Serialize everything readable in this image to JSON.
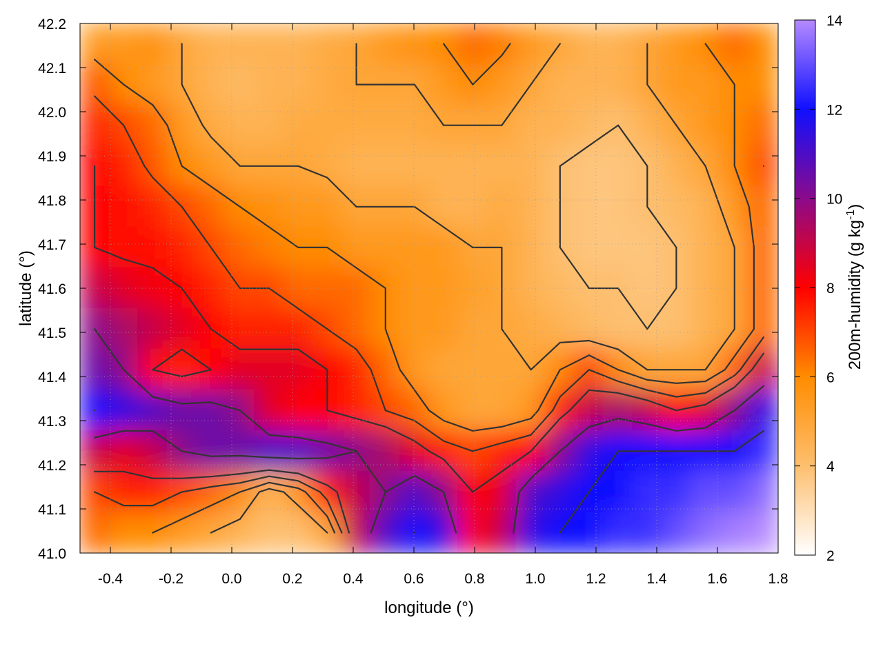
{
  "chart_data": {
    "type": "heatmap",
    "title": "",
    "xlabel": "longitude (°)",
    "ylabel": "latitude (°)",
    "colorbar_label_main": "200m-humidity (g kg",
    "colorbar_label_sup": "-1",
    "colorbar_label_end": ")",
    "xlim": [
      -0.5,
      1.8
    ],
    "ylim": [
      41.0,
      42.2
    ],
    "clim": [
      2,
      14
    ],
    "xticks": [
      -0.4,
      -0.2,
      0.0,
      0.2,
      0.4,
      0.6,
      0.8,
      1.0,
      1.2,
      1.4,
      1.6,
      1.8
    ],
    "xtick_labels": [
      "-0.4",
      "-0.2",
      "0.0",
      "0.2",
      "0.4",
      "0.6",
      "0.8",
      "1.0",
      "1.2",
      "1.4",
      "1.6",
      "1.8"
    ],
    "yticks": [
      41.0,
      41.1,
      41.2,
      41.3,
      41.4,
      41.5,
      41.6,
      41.7,
      41.8,
      41.9,
      42.0,
      42.1,
      42.2
    ],
    "ytick_labels": [
      "41.0",
      "41.1",
      "41.2",
      "41.3",
      "41.4",
      "41.5",
      "41.6",
      "41.7",
      "41.8",
      "41.9",
      "42.0",
      "42.1",
      "42.2"
    ],
    "cticks": [
      2,
      4,
      6,
      8,
      10,
      12,
      14
    ],
    "ctick_labels": [
      "2",
      "4",
      "6",
      "8",
      "10",
      "12",
      "14"
    ],
    "colormap": [
      {
        "value": 2,
        "color": "#ffffff"
      },
      {
        "value": 4,
        "color": "#fdbf6f"
      },
      {
        "value": 6,
        "color": "#ff8c00"
      },
      {
        "value": 8,
        "color": "#ff0000"
      },
      {
        "value": 10,
        "color": "#8b0a8b"
      },
      {
        "value": 12,
        "color": "#1010ff"
      },
      {
        "value": 14,
        "color": "#b58aff"
      }
    ],
    "grid": true,
    "contour_color": "#333333",
    "field_columns": 24,
    "field_rows": 13,
    "field": [
      [
        5.5,
        5.5,
        5.8,
        5.0,
        4.5,
        4.5,
        4.5,
        4.5,
        4.8,
        5.0,
        5.5,
        5.8,
        6.0,
        6.5,
        6.2,
        5.5,
        5.0,
        4.5,
        4.5,
        5.0,
        5.5,
        6.0,
        6.5,
        6.0
      ],
      [
        6.8,
        6.0,
        5.5,
        5.0,
        4.5,
        4.2,
        4.5,
        4.5,
        4.8,
        5.0,
        5.0,
        5.0,
        5.5,
        6.0,
        5.5,
        5.0,
        4.5,
        4.5,
        4.5,
        5.0,
        5.5,
        5.5,
        6.0,
        6.0
      ],
      [
        7.5,
        7.0,
        6.5,
        5.5,
        4.8,
        4.5,
        4.5,
        4.8,
        4.8,
        4.8,
        4.8,
        4.8,
        5.0,
        5.0,
        5.0,
        4.5,
        4.5,
        4.2,
        4.0,
        4.5,
        5.0,
        5.5,
        6.0,
        6.5
      ],
      [
        8.0,
        7.5,
        6.8,
        6.0,
        5.5,
        5.0,
        5.0,
        5.0,
        4.8,
        4.5,
        4.5,
        4.5,
        4.5,
        4.5,
        4.5,
        4.5,
        4.0,
        3.8,
        3.8,
        4.0,
        4.5,
        5.0,
        6.0,
        7.0
      ],
      [
        8.0,
        7.8,
        7.5,
        7.0,
        6.5,
        6.0,
        5.8,
        5.5,
        5.5,
        5.0,
        5.0,
        5.0,
        4.5,
        4.5,
        4.8,
        4.5,
        4.0,
        3.8,
        3.8,
        4.0,
        4.2,
        4.5,
        5.5,
        6.5
      ],
      [
        8.0,
        7.8,
        7.8,
        7.5,
        7.0,
        6.5,
        6.2,
        6.0,
        6.0,
        5.5,
        5.5,
        5.5,
        5.5,
        5.0,
        5.0,
        4.5,
        4.0,
        3.8,
        3.8,
        3.8,
        4.0,
        4.5,
        5.0,
        6.5
      ],
      [
        9.0,
        8.5,
        8.2,
        8.0,
        7.5,
        7.0,
        7.0,
        6.5,
        6.5,
        6.5,
        6.0,
        5.5,
        5.5,
        5.2,
        5.0,
        4.5,
        4.2,
        4.0,
        4.0,
        3.8,
        4.0,
        4.5,
        5.0,
        6.5
      ],
      [
        10.0,
        9.5,
        9.0,
        8.5,
        8.0,
        7.5,
        7.5,
        7.5,
        7.0,
        6.5,
        6.0,
        5.5,
        5.5,
        5.0,
        5.0,
        4.8,
        4.5,
        4.2,
        4.0,
        4.0,
        4.0,
        4.5,
        5.0,
        6.5
      ],
      [
        10.5,
        10.0,
        8.0,
        7.5,
        8.0,
        8.5,
        8.5,
        8.5,
        8.0,
        7.5,
        6.5,
        5.5,
        5.0,
        5.0,
        5.0,
        5.0,
        6.0,
        7.0,
        6.0,
        5.0,
        5.0,
        5.0,
        6.5,
        9.0
      ],
      [
        12.0,
        11.5,
        11.0,
        10.5,
        10.5,
        10.0,
        8.5,
        8.0,
        8.0,
        7.5,
        7.0,
        6.5,
        5.5,
        5.0,
        5.0,
        5.5,
        7.5,
        9.0,
        9.5,
        9.0,
        8.0,
        8.5,
        10.0,
        11.5
      ],
      [
        9.0,
        8.5,
        9.0,
        10.0,
        10.5,
        10.5,
        11.0,
        11.0,
        10.5,
        10.0,
        9.5,
        8.5,
        7.5,
        7.0,
        7.5,
        8.0,
        10.0,
        11.5,
        12.0,
        12.0,
        12.0,
        12.0,
        12.0,
        12.5
      ],
      [
        7.0,
        7.5,
        7.5,
        7.0,
        6.5,
        6.0,
        4.5,
        5.5,
        7.5,
        9.0,
        10.0,
        11.0,
        10.0,
        8.0,
        8.5,
        11.0,
        11.5,
        12.0,
        12.0,
        12.5,
        12.5,
        13.0,
        13.0,
        13.5
      ],
      [
        6.5,
        6.0,
        6.0,
        5.5,
        5.0,
        4.5,
        4.0,
        4.0,
        5.0,
        9.0,
        11.0,
        12.0,
        11.5,
        8.0,
        9.0,
        11.5,
        12.0,
        12.0,
        12.5,
        12.5,
        13.0,
        13.5,
        13.8,
        14.0
      ]
    ]
  }
}
